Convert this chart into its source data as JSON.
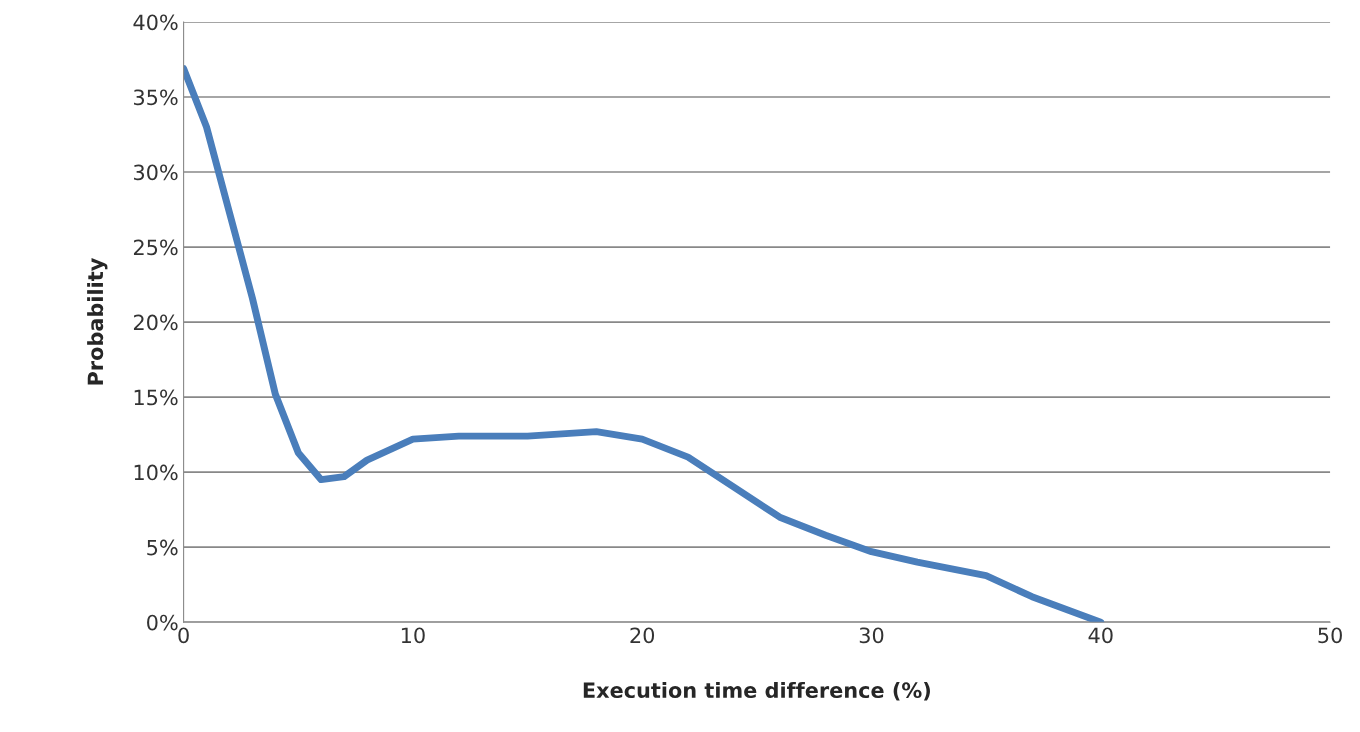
{
  "chart_data": {
    "type": "line",
    "xlabel": "Execution time difference (%)",
    "ylabel": "Probability",
    "x": [
      0,
      1,
      2,
      3,
      4,
      5,
      6,
      7,
      8,
      10,
      12,
      15,
      18,
      20,
      22,
      24,
      26,
      28,
      30,
      32,
      35,
      37,
      40
    ],
    "series": [
      {
        "color": "#4a7ebb",
        "values": [
          36.9,
          33,
          27.3,
          21.6,
          15.2,
          11.3,
          9.5,
          9.7,
          10.8,
          12.2,
          12.4,
          12.4,
          12.7,
          12.2,
          11,
          9,
          7,
          5.8,
          4.7,
          4,
          3.1,
          1.7,
          0
        ]
      }
    ],
    "xlim": [
      0,
      50
    ],
    "xticks": [
      0,
      10,
      20,
      30,
      40,
      50
    ],
    "ylim": [
      0,
      40
    ],
    "yticks": [
      {
        "value": 0,
        "label": "0%"
      },
      {
        "value": 5,
        "label": "5%"
      },
      {
        "value": 10,
        "label": "10%"
      },
      {
        "value": 15,
        "label": "15%"
      },
      {
        "value": 20,
        "label": "20%"
      },
      {
        "value": 25,
        "label": "25%"
      },
      {
        "value": 30,
        "label": "30%"
      },
      {
        "value": 35,
        "label": "35%"
      },
      {
        "value": 40,
        "label": "40%"
      }
    ],
    "grid": "y",
    "marker": "none",
    "line_style": "solid",
    "legend": false
  }
}
